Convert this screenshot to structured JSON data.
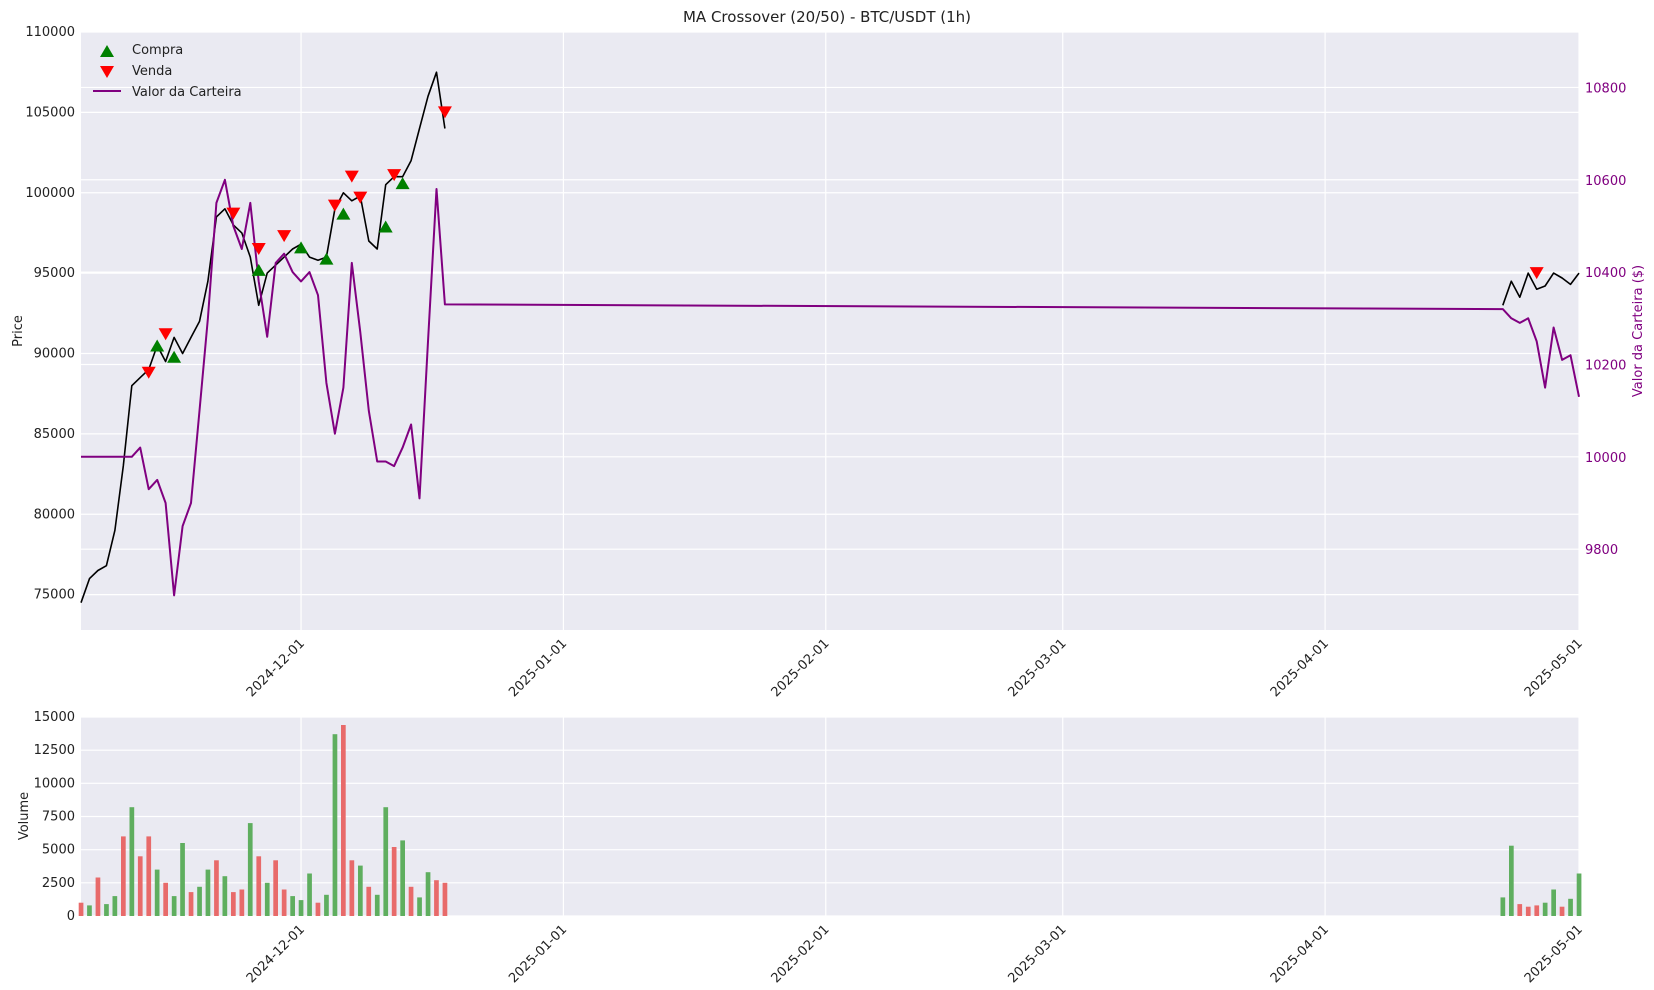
{
  "chart_data": [
    {
      "type": "line",
      "title": "MA Crossover (20/50) - BTC/USDT (1h)",
      "ylabel": "Price",
      "y2label": "Valor da Carteira ($)",
      "xlim": [
        "2024-11-05",
        "2025-05-01"
      ],
      "ylim": [
        72800,
        110000
      ],
      "y2lim": [
        9625,
        10920
      ],
      "x_ticks": [
        "2024-12-01",
        "2025-01-01",
        "2025-02-01",
        "2025-03-01",
        "2025-04-01",
        "2025-05-01"
      ],
      "y_ticks": [
        75000,
        80000,
        85000,
        90000,
        95000,
        100000,
        105000,
        110000
      ],
      "y_tick_labels": [
        "75000",
        "80000",
        "85000",
        "90000",
        "95000",
        "100000",
        "105000",
        "110000"
      ],
      "y2_ticks": [
        9800,
        10000,
        10200,
        10400,
        10600,
        10800
      ],
      "y2_tick_labels": [
        "9800",
        "10000",
        "10200",
        "10400",
        "10600",
        "10800"
      ],
      "grid": true,
      "legend_position": "top-left",
      "legend": [
        {
          "label": "Compra",
          "marker": "triangle-up",
          "color": "#008000"
        },
        {
          "label": "Venda",
          "marker": "triangle-down",
          "color": "#ff0000"
        },
        {
          "label": "Valor da Carteira",
          "marker": "line",
          "color": "#800080"
        }
      ],
      "series": [
        {
          "name": "",
          "axis": "left",
          "color": "#000000",
          "x": [
            "2024-11-05",
            "2024-11-06",
            "2024-11-07",
            "2024-11-08",
            "2024-11-09",
            "2024-11-10",
            "2024-11-11",
            "2024-11-12",
            "2024-11-13",
            "2024-11-14",
            "2024-11-15",
            "2024-11-16",
            "2024-11-17",
            "2024-11-18",
            "2024-11-19",
            "2024-11-20",
            "2024-11-21",
            "2024-11-22",
            "2024-11-23",
            "2024-11-24",
            "2024-11-25",
            "2024-11-26",
            "2024-11-27",
            "2024-11-28",
            "2024-11-29",
            "2024-11-30",
            "2024-12-01",
            "2024-12-02",
            "2024-12-03",
            "2024-12-04",
            "2024-12-05",
            "2024-12-06",
            "2024-12-07",
            "2024-12-08",
            "2024-12-09",
            "2024-12-10",
            "2024-12-11",
            "2024-12-12",
            "2024-12-13",
            "2024-12-14",
            "2024-12-15",
            "2024-12-16",
            "2024-12-17",
            "2024-12-18"
          ],
          "y": [
            74500,
            76000,
            76500,
            76800,
            79000,
            83000,
            88000,
            88500,
            89000,
            90500,
            89500,
            91000,
            90000,
            91000,
            92000,
            94500,
            98500,
            99000,
            98000,
            97500,
            96000,
            93000,
            95000,
            95500,
            96000,
            96500,
            96800,
            96000,
            95800,
            96000,
            99000,
            100000,
            99500,
            99800,
            97000,
            96500,
            100500,
            101000,
            101000,
            102000,
            104000,
            106000,
            107500,
            104000
          ]
        },
        {
          "name": "",
          "axis": "left",
          "color": "#000000",
          "x": [
            "2025-04-22",
            "2025-04-23",
            "2025-04-24",
            "2025-04-25",
            "2025-04-26",
            "2025-04-27",
            "2025-04-28",
            "2025-04-29",
            "2025-04-30",
            "2025-05-01"
          ],
          "y": [
            93000,
            94500,
            93500,
            95000,
            94000,
            94200,
            95000,
            94700,
            94300,
            95000
          ]
        },
        {
          "name": "Valor da Carteira",
          "axis": "right",
          "color": "#800080",
          "x": [
            "2024-11-05",
            "2024-11-11",
            "2024-11-12",
            "2024-11-13",
            "2024-11-14",
            "2024-11-15",
            "2024-11-16",
            "2024-11-17",
            "2024-11-18",
            "2024-11-19",
            "2024-11-20",
            "2024-11-21",
            "2024-11-22",
            "2024-11-23",
            "2024-11-24",
            "2024-11-25",
            "2024-11-26",
            "2024-11-27",
            "2024-11-28",
            "2024-11-29",
            "2024-11-30",
            "2024-12-01",
            "2024-12-02",
            "2024-12-03",
            "2024-12-04",
            "2024-12-05",
            "2024-12-06",
            "2024-12-07",
            "2024-12-08",
            "2024-12-09",
            "2024-12-10",
            "2024-12-11",
            "2024-12-12",
            "2024-12-13",
            "2024-12-14",
            "2024-12-15",
            "2024-12-16",
            "2024-12-17",
            "2024-12-18",
            "2025-04-22",
            "2025-04-23",
            "2025-04-24",
            "2025-04-25",
            "2025-04-26",
            "2025-04-27",
            "2025-04-28",
            "2025-04-29",
            "2025-04-30",
            "2025-05-01"
          ],
          "y": [
            10000,
            10000,
            10020,
            9930,
            9950,
            9900,
            9700,
            9850,
            9900,
            10100,
            10300,
            10550,
            10600,
            10500,
            10450,
            10550,
            10380,
            10260,
            10420,
            10440,
            10400,
            10380,
            10400,
            10350,
            10160,
            10050,
            10150,
            10420,
            10270,
            10100,
            9990,
            9990,
            9980,
            10020,
            10070,
            9910,
            10250,
            10580,
            10330,
            10320,
            10300,
            10290,
            10300,
            10250,
            10150,
            10280,
            10210,
            10220,
            10130
          ]
        }
      ],
      "buy_signals": {
        "x": [
          "2024-11-14",
          "2024-11-16",
          "2024-11-26",
          "2024-12-01",
          "2024-12-04",
          "2024-12-06",
          "2024-12-11",
          "2024-12-13"
        ],
        "y": [
          90500,
          89800,
          95200,
          96600,
          95900,
          98700,
          97900,
          100600
        ]
      },
      "sell_signals": {
        "x": [
          "2024-11-13",
          "2024-11-15",
          "2024-11-23",
          "2024-11-26",
          "2024-11-29",
          "2024-12-05",
          "2024-12-07",
          "2024-12-08",
          "2024-12-12",
          "2024-12-18",
          "2025-04-26"
        ],
        "y": [
          88800,
          91200,
          98700,
          96500,
          97300,
          99200,
          101000,
          99700,
          101100,
          105000,
          95000
        ]
      }
    },
    {
      "type": "bar",
      "ylabel": "Volume",
      "xlim": [
        "2024-11-05",
        "2025-05-01"
      ],
      "ylim": [
        0,
        15000
      ],
      "y_ticks": [
        0,
        2500,
        5000,
        7500,
        10000,
        12500,
        15000
      ],
      "y_tick_labels": [
        "0",
        "2500",
        "5000",
        "7500",
        "10000",
        "12500",
        "15000"
      ],
      "x_ticks": [
        "2024-12-01",
        "2025-01-01",
        "2025-02-01",
        "2025-03-01",
        "2025-04-01",
        "2025-05-01"
      ],
      "up_color": "#5fae5f",
      "down_color": "#e86a6a",
      "grid": true,
      "x": [
        "2024-11-05",
        "2024-11-06",
        "2024-11-07",
        "2024-11-08",
        "2024-11-09",
        "2024-11-10",
        "2024-11-11",
        "2024-11-12",
        "2024-11-13",
        "2024-11-14",
        "2024-11-15",
        "2024-11-16",
        "2024-11-17",
        "2024-11-18",
        "2024-11-19",
        "2024-11-20",
        "2024-11-21",
        "2024-11-22",
        "2024-11-23",
        "2024-11-24",
        "2024-11-25",
        "2024-11-26",
        "2024-11-27",
        "2024-11-28",
        "2024-11-29",
        "2024-11-30",
        "2024-12-01",
        "2024-12-02",
        "2024-12-03",
        "2024-12-04",
        "2024-12-05",
        "2024-12-06",
        "2024-12-07",
        "2024-12-08",
        "2024-12-09",
        "2024-12-10",
        "2024-12-11",
        "2024-12-12",
        "2024-12-13",
        "2024-12-14",
        "2024-12-15",
        "2024-12-16",
        "2024-12-17",
        "2024-12-18",
        "2025-04-22",
        "2025-04-23",
        "2025-04-24",
        "2025-04-25",
        "2025-04-26",
        "2025-04-27",
        "2025-04-28",
        "2025-04-29",
        "2025-04-30",
        "2025-05-01"
      ],
      "values": [
        1000,
        800,
        2900,
        900,
        1500,
        6000,
        8200,
        4500,
        6000,
        3500,
        2500,
        1500,
        5500,
        1800,
        2200,
        3500,
        4200,
        3000,
        1800,
        2000,
        7000,
        4500,
        2500,
        4200,
        2000,
        1500,
        1200,
        3200,
        1000,
        1600,
        13700,
        14400,
        4200,
        3800,
        2200,
        1600,
        8200,
        5200,
        5700,
        2200,
        1400,
        3300,
        2700,
        2500,
        1400,
        5300,
        900,
        700,
        800,
        1000,
        2000,
        700,
        1300,
        3200
      ],
      "directions": [
        "down",
        "up",
        "down",
        "up",
        "up",
        "down",
        "up",
        "down",
        "down",
        "up",
        "down",
        "up",
        "up",
        "down",
        "up",
        "up",
        "down",
        "up",
        "down",
        "down",
        "up",
        "down",
        "up",
        "down",
        "down",
        "up",
        "up",
        "up",
        "down",
        "up",
        "up",
        "down",
        "down",
        "up",
        "down",
        "up",
        "up",
        "down",
        "up",
        "down",
        "up",
        "up",
        "down",
        "down",
        "up",
        "up",
        "down",
        "down",
        "down",
        "up",
        "up",
        "down",
        "up",
        "up"
      ]
    }
  ]
}
